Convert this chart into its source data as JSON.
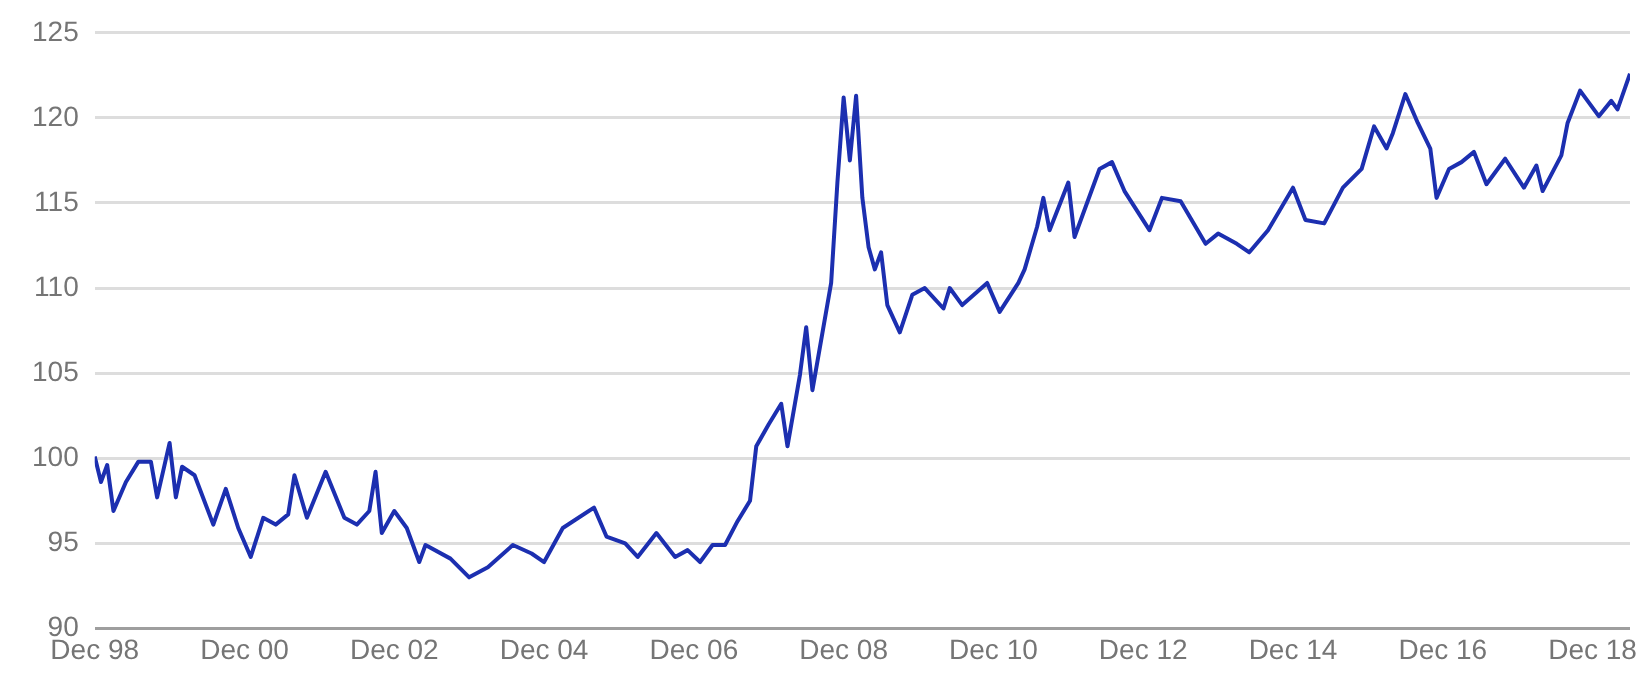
{
  "chart_data": {
    "type": "line",
    "x": [
      "1998-12",
      "1999-01",
      "1999-02",
      "1999-03",
      "1999-05",
      "1999-07",
      "1999-09",
      "1999-10",
      "1999-12",
      "2000-01",
      "2000-02",
      "2000-04",
      "2000-07",
      "2000-09",
      "2000-11",
      "2001-01",
      "2001-03",
      "2001-05",
      "2001-07",
      "2001-08",
      "2001-10",
      "2002-01",
      "2002-04",
      "2002-06",
      "2002-08",
      "2002-09",
      "2002-10",
      "2002-12",
      "2003-02",
      "2003-04",
      "2003-05",
      "2003-09",
      "2003-12",
      "2004-03",
      "2004-07",
      "2004-10",
      "2004-12",
      "2005-03",
      "2005-08",
      "2005-10",
      "2006-01",
      "2006-03",
      "2006-06",
      "2006-09",
      "2006-11",
      "2007-01",
      "2007-03",
      "2007-05",
      "2007-07",
      "2007-09",
      "2007-10",
      "2007-12",
      "2008-02",
      "2008-03",
      "2008-05",
      "2008-06",
      "2008-07",
      "2008-10",
      "2008-11",
      "2008-12",
      "2009-01",
      "2009-02",
      "2009-03",
      "2009-04",
      "2009-05",
      "2009-06",
      "2009-07",
      "2009-09",
      "2009-11",
      "2010-01",
      "2010-04",
      "2010-05",
      "2010-07",
      "2010-11",
      "2011-01",
      "2011-04",
      "2011-05",
      "2011-07",
      "2011-08",
      "2011-09",
      "2011-12",
      "2012-01",
      "2012-05",
      "2012-07",
      "2012-09",
      "2013-01",
      "2013-03",
      "2013-06",
      "2013-10",
      "2013-12",
      "2014-03",
      "2014-05",
      "2014-08",
      "2014-12",
      "2015-02",
      "2015-05",
      "2015-08",
      "2015-11",
      "2016-01",
      "2016-03",
      "2016-04",
      "2016-06",
      "2016-08",
      "2016-10",
      "2016-11",
      "2017-01",
      "2017-03",
      "2017-05",
      "2017-07",
      "2017-10",
      "2018-01",
      "2018-03",
      "2018-04",
      "2018-07",
      "2018-08",
      "2018-10",
      "2019-01",
      "2019-03",
      "2019-04",
      "2019-06"
    ],
    "series": [
      {
        "color": "#1c2fb0",
        "values": [
          100.1,
          98.6,
          99.6,
          96.9,
          98.6,
          99.8,
          99.8,
          97.7,
          100.9,
          97.7,
          99.5,
          99.0,
          96.1,
          98.2,
          95.9,
          94.2,
          96.5,
          96.1,
          96.7,
          99.0,
          96.5,
          99.2,
          96.5,
          96.1,
          96.9,
          99.2,
          95.6,
          96.9,
          95.9,
          93.9,
          94.9,
          94.1,
          93.0,
          93.6,
          94.9,
          94.4,
          93.9,
          95.9,
          97.1,
          95.4,
          95.0,
          94.2,
          95.6,
          94.2,
          94.6,
          93.9,
          94.9,
          94.9,
          96.3,
          97.5,
          100.7,
          102.0,
          103.2,
          100.7,
          104.9,
          107.7,
          104.0,
          110.3,
          116.2,
          121.2,
          117.5,
          121.3,
          115.3,
          112.4,
          111.1,
          112.1,
          109.0,
          107.4,
          109.6,
          110.0,
          108.8,
          110.0,
          109.0,
          110.3,
          108.6,
          110.3,
          111.1,
          113.6,
          115.3,
          113.4,
          116.2,
          113.0,
          117.0,
          117.4,
          115.7,
          113.4,
          115.3,
          115.1,
          112.6,
          113.2,
          112.6,
          112.1,
          113.4,
          115.9,
          114.0,
          113.8,
          115.9,
          117.0,
          119.5,
          118.2,
          119.1,
          121.4,
          119.7,
          118.2,
          115.3,
          117.0,
          117.4,
          118.0,
          116.1,
          117.6,
          115.9,
          117.2,
          115.7,
          117.8,
          119.7,
          121.6,
          120.1,
          121.0,
          120.5,
          122.6
        ]
      }
    ],
    "xlim": [
      "1998-12",
      "2019-06"
    ],
    "xticks": [
      {
        "value": "1998-12",
        "label": "Dec 98"
      },
      {
        "value": "2000-12",
        "label": "Dec 00"
      },
      {
        "value": "2002-12",
        "label": "Dec 02"
      },
      {
        "value": "2004-12",
        "label": "Dec 04"
      },
      {
        "value": "2006-12",
        "label": "Dec 06"
      },
      {
        "value": "2008-12",
        "label": "Dec 08"
      },
      {
        "value": "2010-12",
        "label": "Dec 10"
      },
      {
        "value": "2012-12",
        "label": "Dec 12"
      },
      {
        "value": "2014-12",
        "label": "Dec 14"
      },
      {
        "value": "2016-12",
        "label": "Dec 16"
      },
      {
        "value": "2018-12",
        "label": "Dec 18"
      }
    ],
    "ylim": [
      90,
      125
    ],
    "yticks": [
      90,
      95,
      100,
      105,
      110,
      115,
      120,
      125
    ],
    "grid": "y",
    "legend": false,
    "marker": "none",
    "line_style": "solid"
  }
}
